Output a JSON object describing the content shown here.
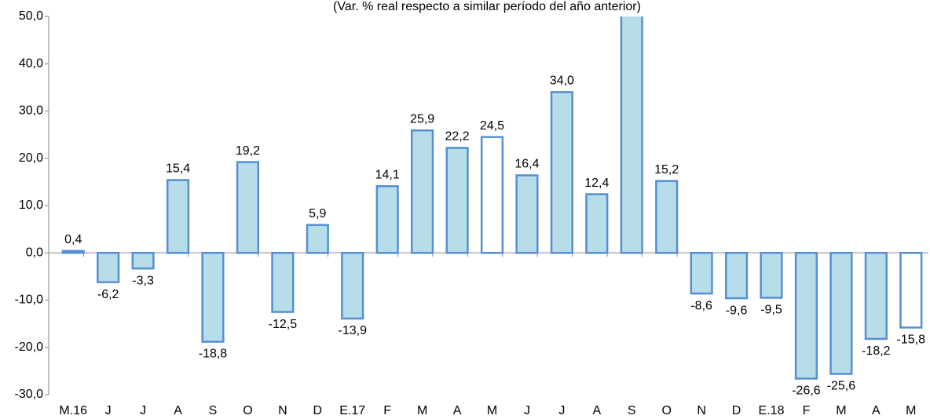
{
  "chart_data": {
    "type": "bar",
    "subtitle": "(Var. % real respecto a similar período del año anterior)",
    "categories": [
      "M.16",
      "J",
      "J",
      "A",
      "S",
      "O",
      "N",
      "D",
      "E.17",
      "F",
      "M",
      "A",
      "M",
      "J",
      "J",
      "A",
      "S",
      "O",
      "N",
      "D",
      "E.18",
      "F",
      "M",
      "A",
      "M"
    ],
    "values": [
      0.4,
      -6.2,
      -3.3,
      15.4,
      -18.8,
      19.2,
      -12.5,
      5.9,
      -13.9,
      14.1,
      25.9,
      22.2,
      24.5,
      16.4,
      34.0,
      12.4,
      55,
      15.2,
      -8.6,
      -9.6,
      -9.5,
      -26.6,
      -25.6,
      -18.2,
      -15.8
    ],
    "value_labels": [
      "0,4",
      "-6,2",
      "-3,3",
      "15,4",
      "-18,8",
      "19,2",
      "-12,5",
      "5,9",
      "-13,9",
      "14,1",
      "25,9",
      "22,2",
      "24,5",
      "16,4",
      "34,0",
      "12,4",
      null,
      "15,2",
      "-8,6",
      "-9,6",
      "-9,5",
      "-26,6",
      "-25,6",
      "-18,2",
      "-15,8"
    ],
    "colors": [
      "#b7dde8",
      "#b7dde8",
      "#b7dde8",
      "#b7dde8",
      "#b7dde8",
      "#b7dde8",
      "#b7dde8",
      "#b7dde8",
      "#b7dde8",
      "#b7dde8",
      "#b7dde8",
      "#b7dde8",
      "#ffffff",
      "#b7dde8",
      "#b7dde8",
      "#b7dde8",
      "#b7dde8",
      "#b7dde8",
      "#b7dde8",
      "#b7dde8",
      "#b7dde8",
      "#b7dde8",
      "#b7dde8",
      "#b7dde8",
      "#ffffff"
    ],
    "edge_color": "#558ed5",
    "ylim": [
      -30,
      50
    ],
    "yticks": [
      {
        "value": -30,
        "label": "-30,0"
      },
      {
        "value": -20,
        "label": "-20,0"
      },
      {
        "value": -10,
        "label": "-10,0"
      },
      {
        "value": 0,
        "label": "0,0"
      },
      {
        "value": 10,
        "label": "10,0"
      },
      {
        "value": 20,
        "label": "20,0"
      },
      {
        "value": 30,
        "label": "30,0"
      },
      {
        "value": 40,
        "label": "40,0"
      },
      {
        "value": 50,
        "label": {
          "value": 50,
          "label": "50,0"
        }
      }
    ]
  }
}
